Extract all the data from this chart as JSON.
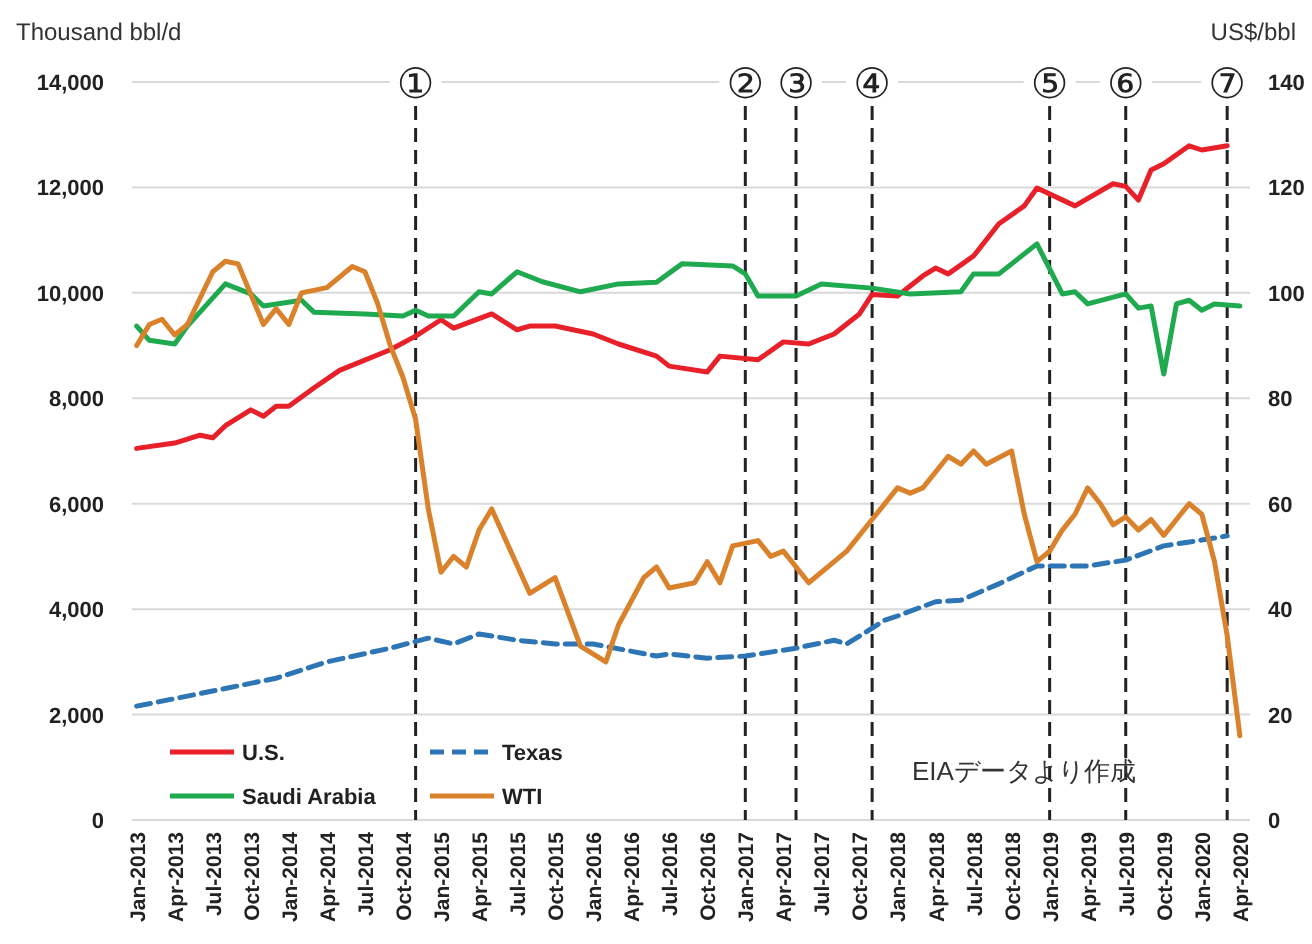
{
  "chart_data": {
    "type": "line",
    "ylabel": "Thousand bbl/d",
    "y2label": "US$/bbl",
    "xlim": [
      "2012-12-20",
      "2020-04-25"
    ],
    "xticks": [
      {
        "value": "2013-01",
        "label": "Jan-2013"
      },
      {
        "value": "2013-04",
        "label": "Apr-2013"
      },
      {
        "value": "2013-07",
        "label": "Jul-2013"
      },
      {
        "value": "2013-10",
        "label": "Oct-2013"
      },
      {
        "value": "2014-01",
        "label": "Jan-2014"
      },
      {
        "value": "2014-04",
        "label": "Apr-2014"
      },
      {
        "value": "2014-07",
        "label": "Jul-2014"
      },
      {
        "value": "2014-10",
        "label": "Oct-2014"
      },
      {
        "value": "2015-01",
        "label": "Jan-2015"
      },
      {
        "value": "2015-04",
        "label": "Apr-2015"
      },
      {
        "value": "2015-07",
        "label": "Jul-2015"
      },
      {
        "value": "2015-10",
        "label": "Oct-2015"
      },
      {
        "value": "2016-01",
        "label": "Jan-2016"
      },
      {
        "value": "2016-04",
        "label": "Apr-2016"
      },
      {
        "value": "2016-07",
        "label": "Jul-2016"
      },
      {
        "value": "2016-10",
        "label": "Oct-2016"
      },
      {
        "value": "2017-01",
        "label": "Jan-2017"
      },
      {
        "value": "2017-04",
        "label": "Apr-2017"
      },
      {
        "value": "2017-07",
        "label": "Jul-2017"
      },
      {
        "value": "2017-10",
        "label": "Oct-2017"
      },
      {
        "value": "2018-01",
        "label": "Jan-2018"
      },
      {
        "value": "2018-04",
        "label": "Apr-2018"
      },
      {
        "value": "2018-07",
        "label": "Jul-2018"
      },
      {
        "value": "2018-10",
        "label": "Oct-2018"
      },
      {
        "value": "2019-01",
        "label": "Jan-2019"
      },
      {
        "value": "2019-04",
        "label": "Apr-2019"
      },
      {
        "value": "2019-07",
        "label": "Jul-2019"
      },
      {
        "value": "2019-10",
        "label": "Oct-2019"
      },
      {
        "value": "2020-01",
        "label": "Jan-2020"
      },
      {
        "value": "2020-04",
        "label": "Apr-2020"
      }
    ],
    "ylim": [
      0,
      14000
    ],
    "yticks": [
      {
        "value": 0,
        "label": "0"
      },
      {
        "value": 2000,
        "label": "2,000"
      },
      {
        "value": 4000,
        "label": "4,000"
      },
      {
        "value": 6000,
        "label": "6,000"
      },
      {
        "value": 8000,
        "label": "8,000"
      },
      {
        "value": 10000,
        "label": "10,000"
      },
      {
        "value": 12000,
        "label": "12,000"
      },
      {
        "value": 14000,
        "label": "14,000"
      }
    ],
    "y2lim": [
      0,
      140
    ],
    "y2ticks": [
      0,
      20,
      40,
      60,
      80,
      100,
      120,
      140
    ],
    "grid": "y",
    "legend": "bottom left",
    "series": [
      {
        "name": "U.S.",
        "color": "#e8202a",
        "line_style": "solid",
        "x": [
          "2013-01",
          "2013-04",
          "2013-06",
          "2013-07",
          "2013-08",
          "2013-10",
          "2013-11",
          "2013-12",
          "2014-01",
          "2014-03",
          "2014-05",
          "2014-09",
          "2014-11",
          "2015-01",
          "2015-02",
          "2015-05",
          "2015-07",
          "2015-08",
          "2015-10",
          "2016-01",
          "2016-03",
          "2016-06",
          "2016-07",
          "2016-10",
          "2016-11",
          "2017-02",
          "2017-04",
          "2017-06",
          "2017-08",
          "2017-10",
          "2017-11",
          "2018-01",
          "2018-03",
          "2018-04",
          "2018-05",
          "2018-07",
          "2018-09",
          "2018-11",
          "2018-12",
          "2019-03",
          "2019-06",
          "2019-07",
          "2019-08",
          "2019-09",
          "2019-10",
          "2019-12",
          "2020-01",
          "2020-03"
        ],
        "values": [
          7050,
          7150,
          7300,
          7250,
          7480,
          7780,
          7660,
          7850,
          7850,
          8200,
          8530,
          8920,
          9180,
          9490,
          9330,
          9600,
          9300,
          9370,
          9370,
          9220,
          9030,
          8800,
          8610,
          8500,
          8800,
          8730,
          9070,
          9030,
          9220,
          9600,
          9970,
          9940,
          10320,
          10470,
          10360,
          10700,
          11310,
          11650,
          11990,
          11650,
          12070,
          12020,
          11760,
          12330,
          12450,
          12790,
          12710,
          12790
        ]
      },
      {
        "name": "Texas",
        "color": "#2e75b6",
        "line_style": "dashed",
        "x": [
          "2013-01",
          "2013-05",
          "2013-12",
          "2014-04",
          "2014-09",
          "2014-12",
          "2015-02",
          "2015-04",
          "2015-07",
          "2015-10",
          "2016-01",
          "2016-06",
          "2016-07",
          "2016-10",
          "2017-01",
          "2017-05",
          "2017-08",
          "2017-09",
          "2017-12",
          "2018-01",
          "2018-04",
          "2018-06",
          "2018-09",
          "2018-12",
          "2019-04",
          "2019-07",
          "2019-10",
          "2020-01",
          "2020-03"
        ],
        "values": [
          2160,
          2350,
          2690,
          3000,
          3260,
          3450,
          3340,
          3530,
          3410,
          3340,
          3340,
          3110,
          3150,
          3070,
          3110,
          3260,
          3410,
          3340,
          3790,
          3870,
          4140,
          4170,
          4480,
          4820,
          4820,
          4930,
          5200,
          5310,
          5390
        ]
      },
      {
        "name": "Saudi Arabia",
        "color": "#1faa4f",
        "line_style": "solid",
        "x": [
          "2013-01",
          "2013-02",
          "2013-04",
          "2013-05",
          "2013-08",
          "2013-10",
          "2013-11",
          "2014-02",
          "2014-03",
          "2014-07",
          "2014-10",
          "2014-11",
          "2014-12",
          "2015-02",
          "2015-04",
          "2015-05",
          "2015-07",
          "2015-09",
          "2015-12",
          "2016-03",
          "2016-06",
          "2016-08",
          "2016-12",
          "2017-01",
          "2017-02",
          "2017-05",
          "2017-07",
          "2017-11",
          "2018-02",
          "2018-06",
          "2018-07",
          "2018-09",
          "2018-12",
          "2019-02",
          "2019-03",
          "2019-04",
          "2019-07",
          "2019-08",
          "2019-09",
          "2019-10",
          "2019-11",
          "2019-12",
          "2020-01",
          "2020-02",
          "2020-04"
        ],
        "values": [
          9370,
          9100,
          9030,
          9370,
          10170,
          9980,
          9750,
          9860,
          9630,
          9600,
          9560,
          9670,
          9560,
          9560,
          10020,
          9980,
          10400,
          10210,
          10020,
          10170,
          10200,
          10550,
          10510,
          10360,
          9940,
          9940,
          10170,
          10090,
          9980,
          10020,
          10360,
          10360,
          10930,
          9980,
          10020,
          9790,
          9980,
          9710,
          9750,
          8460,
          9790,
          9860,
          9670,
          9790,
          9750
        ]
      },
      {
        "name": "WTI",
        "color": "#d9822b",
        "line_style": "solid",
        "axis": "y2",
        "x": [
          "2013-01",
          "2013-02",
          "2013-03",
          "2013-04",
          "2013-05",
          "2013-07",
          "2013-08",
          "2013-09",
          "2013-11",
          "2013-12",
          "2014-01",
          "2014-02",
          "2014-04",
          "2014-06",
          "2014-07",
          "2014-08",
          "2014-09",
          "2014-10",
          "2014-11",
          "2014-12",
          "2015-01",
          "2015-02",
          "2015-03",
          "2015-04",
          "2015-05",
          "2015-08",
          "2015-10",
          "2015-12",
          "2016-02",
          "2016-03",
          "2016-05",
          "2016-06",
          "2016-07",
          "2016-09",
          "2016-10",
          "2016-11",
          "2016-12",
          "2017-02",
          "2017-03",
          "2017-04",
          "2017-06",
          "2017-09",
          "2017-11",
          "2018-01",
          "2018-02",
          "2018-03",
          "2018-05",
          "2018-06",
          "2018-07",
          "2018-08",
          "2018-10",
          "2018-11",
          "2018-12",
          "2019-01",
          "2019-02",
          "2019-03",
          "2019-04",
          "2019-05",
          "2019-06",
          "2019-07",
          "2019-08",
          "2019-09",
          "2019-10",
          "2019-11",
          "2019-12",
          "2020-01",
          "2020-02",
          "2020-03",
          "2020-04"
        ],
        "values": [
          90,
          94,
          95,
          92,
          94,
          104,
          106,
          105.5,
          94,
          97,
          94,
          100,
          101,
          105,
          104,
          98,
          90,
          84,
          76,
          59,
          47,
          50,
          48,
          55,
          59,
          43,
          46,
          33,
          30,
          37,
          46,
          48,
          44,
          45,
          49,
          45,
          52,
          53,
          50,
          51,
          45,
          51,
          57,
          63,
          62,
          63,
          69,
          67.5,
          70,
          67.5,
          70,
          58,
          49,
          51,
          55,
          58,
          63,
          60,
          56,
          57.5,
          55,
          57,
          54,
          57,
          60,
          58,
          49,
          35,
          16
        ]
      }
    ],
    "ref_lines": [
      {
        "axis": "x",
        "value": "2014-11",
        "label": "①",
        "color": "#222222",
        "line_style": "dashed"
      },
      {
        "axis": "x",
        "value": "2017-01",
        "label": "②",
        "color": "#222222",
        "line_style": "dashed"
      },
      {
        "axis": "x",
        "value": "2017-05",
        "label": "③",
        "color": "#222222",
        "line_style": "dashed"
      },
      {
        "axis": "x",
        "value": "2017-11",
        "label": "④",
        "color": "#222222",
        "line_style": "dashed"
      },
      {
        "axis": "x",
        "value": "2019-01",
        "label": "⑤",
        "color": "#222222",
        "line_style": "dashed"
      },
      {
        "axis": "x",
        "value": "2019-07",
        "label": "⑥",
        "color": "#222222",
        "line_style": "dashed"
      },
      {
        "axis": "x",
        "value": "2020-03",
        "label": "⑦",
        "color": "#222222",
        "line_style": "dashed"
      }
    ],
    "annotations": [
      "EIAデータより作成"
    ]
  }
}
